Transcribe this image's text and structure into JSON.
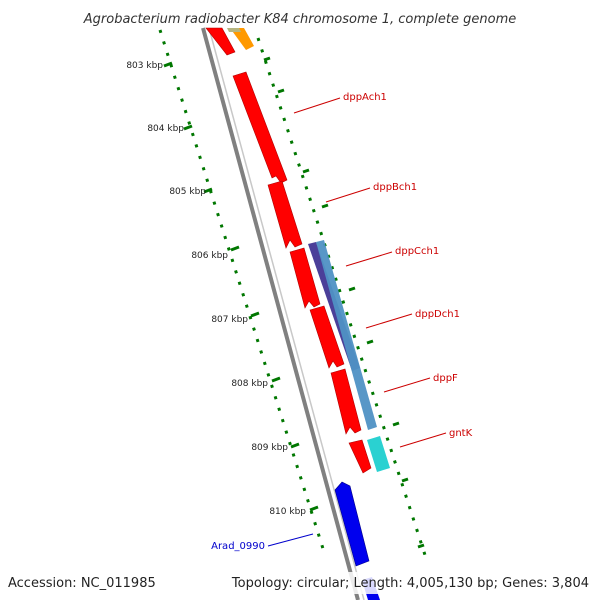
{
  "title": "Agrobacterium radiobacter K84 chromosome 1, complete genome",
  "footer": {
    "accession": "Accession: NC_011985",
    "summary": "Topology: circular; Length: 4,005,130 bp; Genes: 3,804"
  },
  "ticks": [
    "803 kbp",
    "804 kbp",
    "805 kbp",
    "806 kbp",
    "807 kbp",
    "808 kbp",
    "809 kbp",
    "810 kbp"
  ],
  "gene_labels": [
    {
      "text": "dppAch1",
      "color": "#cc0000"
    },
    {
      "text": "dppBch1",
      "color": "#cc0000"
    },
    {
      "text": "dppCch1",
      "color": "#cc0000"
    },
    {
      "text": "dppDch1",
      "color": "#cc0000"
    },
    {
      "text": "dppF",
      "color": "#cc0000"
    },
    {
      "text": "gntK",
      "color": "#cc0000"
    },
    {
      "text": "Arad_0990",
      "color": "#0000cc"
    }
  ],
  "colors": {
    "backbone": "#808080",
    "cds": "#ff0000",
    "reverse_cds": "#0000ee",
    "blast_dark": "#4b3f99",
    "blast_steel": "#4f91c4",
    "blast_cyan": "#2ad1d1",
    "orange": "#ff9900",
    "tick_green": "#007700"
  }
}
